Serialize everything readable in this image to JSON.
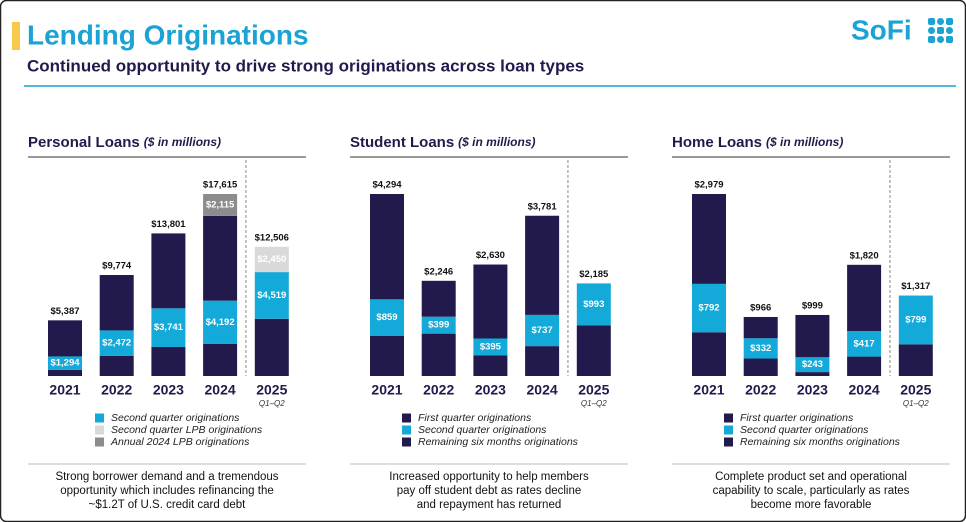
{
  "header": {
    "title": "Lending Originations",
    "subtitle": "Continued opportunity to drive strong originations across loan types",
    "logo": "SoFi"
  },
  "chart_data": [
    {
      "type": "stacked_bar",
      "title": "Personal Loans",
      "title_unit": "($ in millions)",
      "categories": [
        "2021",
        "2022",
        "2023",
        "2024",
        "2025"
      ],
      "category_notes": [
        null,
        null,
        null,
        null,
        "Q1–Q2"
      ],
      "totals": [
        5387,
        9774,
        13801,
        17615,
        12506
      ],
      "total_labels": [
        "$5,387",
        "$9,774",
        "$13,801",
        "$17,615",
        "$12,506"
      ],
      "series": [
        {
          "color": "#221a4c",
          "values": [
            600,
            1940,
            2810,
            3100,
            5537
          ]
        },
        {
          "name": "Second quarter originations",
          "color": "#13a9d8",
          "values": [
            1294,
            2472,
            3741,
            4192,
            4519
          ],
          "value_labels": [
            "$1,294",
            "$2,472",
            "$3,741",
            "$4,192",
            "$4,519"
          ]
        },
        {
          "color": "#221a4c",
          "values": [
            3493,
            5362,
            7250,
            8208,
            null
          ]
        },
        {
          "name": "Second quarter LPB originations",
          "color": "#d9d9d9",
          "values": [
            null,
            null,
            null,
            null,
            2450
          ],
          "value_labels": [
            null,
            null,
            null,
            null,
            "$2,450"
          ]
        },
        {
          "name": "Annual 2024 LPB originations",
          "color": "#8c8c8c",
          "values": [
            null,
            null,
            null,
            2115,
            null
          ],
          "value_labels": [
            null,
            null,
            null,
            "$2,115",
            null
          ]
        }
      ],
      "caption": [
        "Strong borrower demand and a tremendous",
        "opportunity which includes refinancing the",
        "~$1.2T of U.S. credit card debt"
      ]
    },
    {
      "type": "stacked_bar",
      "title": "Student Loans",
      "title_unit": "($ in millions)",
      "categories": [
        "2021",
        "2022",
        "2023",
        "2024",
        "2025"
      ],
      "category_notes": [
        null,
        null,
        null,
        null,
        "Q1–Q2"
      ],
      "totals": [
        4294,
        2246,
        2630,
        3781,
        2185
      ],
      "total_labels": [
        "$4,294",
        "$2,246",
        "$2,630",
        "$3,781",
        "$2,185"
      ],
      "series": [
        {
          "name": "First quarter originations",
          "color": "#221a4c",
          "values": [
            950,
            1000,
            490,
            705,
            1192
          ]
        },
        {
          "name": "Second quarter originations",
          "color": "#13a9d8",
          "values": [
            859,
            399,
            395,
            737,
            993
          ],
          "value_labels": [
            "$859",
            "$399",
            "$395",
            "$737",
            "$993"
          ]
        },
        {
          "name": "Remaining six months originations",
          "color": "#221a4c",
          "values": [
            2485,
            847,
            1745,
            2339,
            null
          ]
        }
      ],
      "caption": [
        "Increased opportunity to help members",
        "pay off student debt as rates decline",
        "and repayment has returned"
      ]
    },
    {
      "type": "stacked_bar",
      "title": "Home Loans",
      "title_unit": "($ in millions)",
      "categories": [
        "2021",
        "2022",
        "2023",
        "2024",
        "2025"
      ],
      "category_notes": [
        null,
        null,
        null,
        null,
        "Q1–Q2"
      ],
      "totals": [
        2979,
        966,
        999,
        1820,
        1317
      ],
      "total_labels": [
        "$2,979",
        "$966",
        "$999",
        "$1,820",
        "$1,317"
      ],
      "series": [
        {
          "name": "First quarter originations",
          "color": "#221a4c",
          "values": [
            716,
            286,
            64,
            318,
            518
          ]
        },
        {
          "name": "Second quarter originations",
          "color": "#13a9d8",
          "values": [
            792,
            332,
            243,
            417,
            799
          ],
          "value_labels": [
            "$792",
            "$332",
            "$243",
            "$417",
            "$799"
          ]
        },
        {
          "name": "Remaining six months originations",
          "color": "#221a4c",
          "values": [
            1471,
            348,
            692,
            1085,
            null
          ]
        }
      ],
      "caption": [
        "Complete product set and operational",
        "capability to scale, particularly as rates",
        "become more favorable"
      ]
    }
  ]
}
